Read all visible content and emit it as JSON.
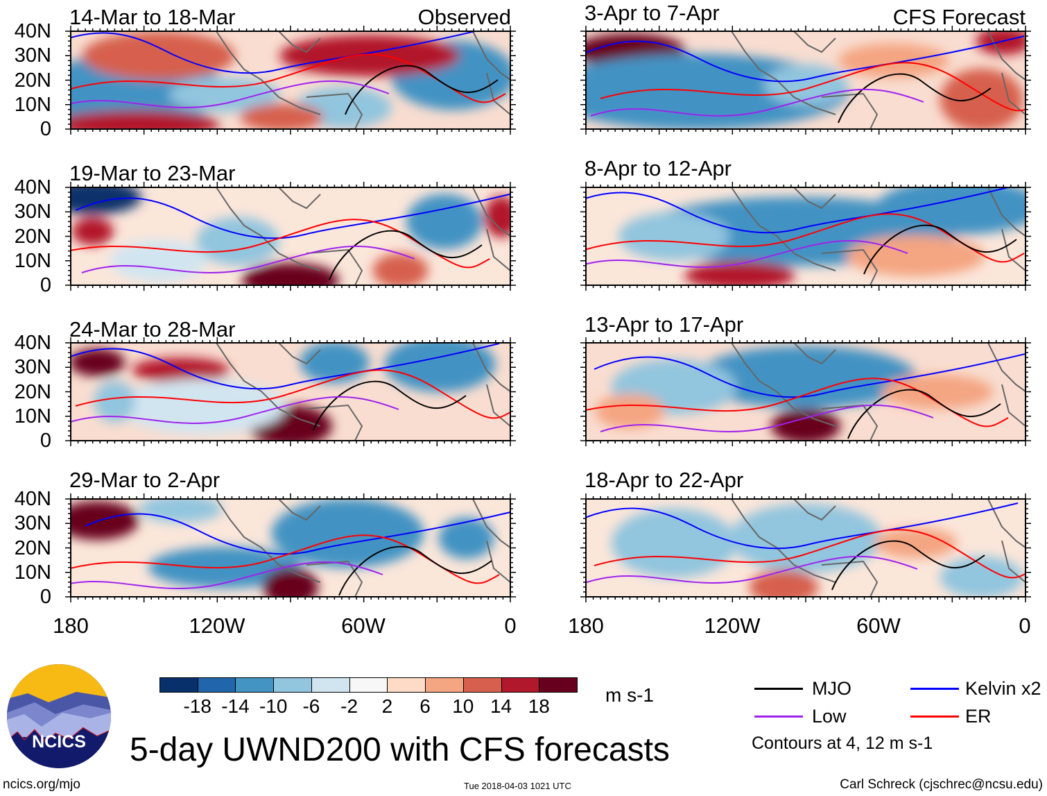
{
  "figure": {
    "title": "5-day UWND200 with CFS forecasts",
    "observed_label": "Observed",
    "forecast_label": "CFS Forecast",
    "units": "m s-1",
    "contour_note": "Contours at 4, 12 m s-1",
    "website": "ncics.org/mjo",
    "timestamp": "Tue 2018-04-03 1021 UTC",
    "author": "Carl Schreck (cjschrec@ncsu.edu)",
    "logo_text": "NCICS"
  },
  "panels": {
    "observed": [
      {
        "title": "14-Mar to 18-Mar"
      },
      {
        "title": "19-Mar to 23-Mar"
      },
      {
        "title": "24-Mar to 28-Mar"
      },
      {
        "title": "29-Mar to 2-Apr"
      }
    ],
    "forecast": [
      {
        "title": "3-Apr to 7-Apr"
      },
      {
        "title": "8-Apr to 12-Apr"
      },
      {
        "title": "13-Apr to 17-Apr"
      },
      {
        "title": "18-Apr to 22-Apr"
      }
    ]
  },
  "axes": {
    "lat_labels": [
      "40N",
      "30N",
      "20N",
      "10N",
      "0"
    ],
    "lon_labels": [
      "180",
      "120W",
      "60W",
      "0"
    ]
  },
  "colorbar": {
    "colors": [
      "#08306b",
      "#2166ac",
      "#4393c3",
      "#92c5de",
      "#d1e5f0",
      "#f7f7f7",
      "#fddbc7",
      "#f4a582",
      "#d6604d",
      "#b2182b",
      "#67001f"
    ],
    "ticks": [
      "-18",
      "-14",
      "-10",
      "-6",
      "-2",
      "2",
      "6",
      "10",
      "14",
      "18"
    ]
  },
  "legend": [
    {
      "label": "MJO",
      "color": "#000000"
    },
    {
      "label": "Kelvin x2",
      "color": "#0000ff"
    },
    {
      "label": "Low",
      "color": "#a020f0"
    },
    {
      "label": "ER",
      "color": "#ff0000"
    }
  ]
}
